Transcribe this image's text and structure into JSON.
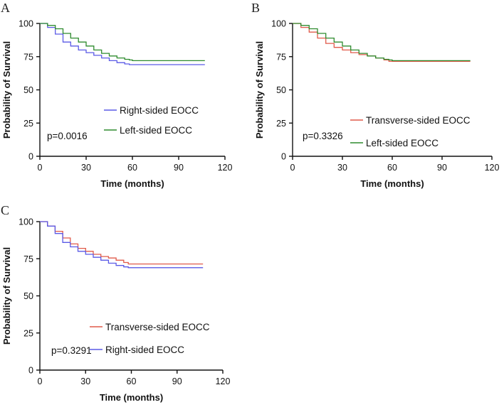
{
  "chart_data": [
    {
      "panel": "A",
      "type": "line",
      "xlabel": "Time  (months)",
      "ylabel": "Probability of Survival",
      "xlim": [
        0,
        120
      ],
      "ylim": [
        0,
        100
      ],
      "xticks": [
        "0",
        "30",
        "60",
        "90",
        "120"
      ],
      "yticks": [
        "0",
        "25",
        "50",
        "75",
        "100"
      ],
      "annotation": "p=0.0016",
      "series": [
        {
          "name": "Right-sided EOCC",
          "color": "#5a5ae6",
          "x": [
            0,
            5,
            10,
            15,
            20,
            25,
            30,
            35,
            40,
            45,
            50,
            55,
            58,
            60,
            107
          ],
          "y": [
            100,
            97,
            92,
            86,
            83,
            80,
            78,
            76,
            74,
            72,
            70.5,
            69.5,
            69,
            69,
            69
          ]
        },
        {
          "name": "Left-sided EOCC",
          "color": "#2e8b2e",
          "x": [
            0,
            5,
            10,
            15,
            20,
            25,
            30,
            35,
            40,
            45,
            50,
            55,
            58,
            60,
            107
          ],
          "y": [
            100,
            98.5,
            96,
            92.5,
            89,
            86,
            83,
            80,
            77.5,
            75.5,
            74,
            73,
            72.5,
            72,
            72
          ]
        }
      ]
    },
    {
      "panel": "B",
      "type": "line",
      "xlabel": "Time  (months)",
      "ylabel": "Probability of Survival",
      "xlim": [
        0,
        120
      ],
      "ylim": [
        0,
        100
      ],
      "xticks": [
        "0",
        "30",
        "60",
        "90",
        "120"
      ],
      "yticks": [
        "0",
        "25",
        "50",
        "75",
        "100"
      ],
      "annotation": "p=0.3326",
      "series": [
        {
          "name": "Transverse-sided EOCC",
          "color": "#e05a4a",
          "x": [
            0,
            5,
            10,
            15,
            20,
            25,
            30,
            35,
            40,
            45,
            50,
            55,
            58,
            60,
            107
          ],
          "y": [
            100,
            97,
            93.5,
            89,
            85,
            82,
            80,
            78,
            76.5,
            75.5,
            74,
            72.5,
            71.5,
            71.5,
            71.5
          ]
        },
        {
          "name": "Left-sided EOCC",
          "color": "#2e8b2e",
          "x": [
            0,
            5,
            10,
            15,
            20,
            25,
            30,
            35,
            40,
            45,
            50,
            55,
            58,
            60,
            107
          ],
          "y": [
            100,
            98.5,
            96,
            92.5,
            89,
            86,
            83,
            80,
            77.5,
            75.5,
            74,
            73,
            72.5,
            72,
            72
          ]
        }
      ]
    },
    {
      "panel": "C",
      "type": "line",
      "xlabel": "Time  (months)",
      "ylabel": "Probability of Survival",
      "xlim": [
        0,
        120
      ],
      "ylim": [
        0,
        100
      ],
      "xticks": [
        "0",
        "30",
        "60",
        "90",
        "120"
      ],
      "yticks": [
        "0",
        "25",
        "50",
        "75",
        "100"
      ],
      "annotation": "p=0.3291",
      "series": [
        {
          "name": "Transverse-sided EOCC",
          "color": "#e05a4a",
          "x": [
            0,
            5,
            10,
            15,
            20,
            25,
            30,
            35,
            40,
            45,
            50,
            55,
            58,
            60,
            107
          ],
          "y": [
            100,
            97,
            93.5,
            89,
            85,
            82,
            80,
            78,
            76.5,
            75.5,
            74,
            72.5,
            71.5,
            71.5,
            71.5
          ]
        },
        {
          "name": "Right-sided EOCC",
          "color": "#5a5ae6",
          "x": [
            0,
            5,
            10,
            15,
            20,
            25,
            30,
            35,
            40,
            45,
            50,
            55,
            58,
            60,
            107
          ],
          "y": [
            100,
            97,
            92,
            86,
            83,
            80,
            78,
            76,
            74,
            72,
            70.5,
            69.5,
            69,
            69,
            69
          ]
        }
      ]
    }
  ]
}
